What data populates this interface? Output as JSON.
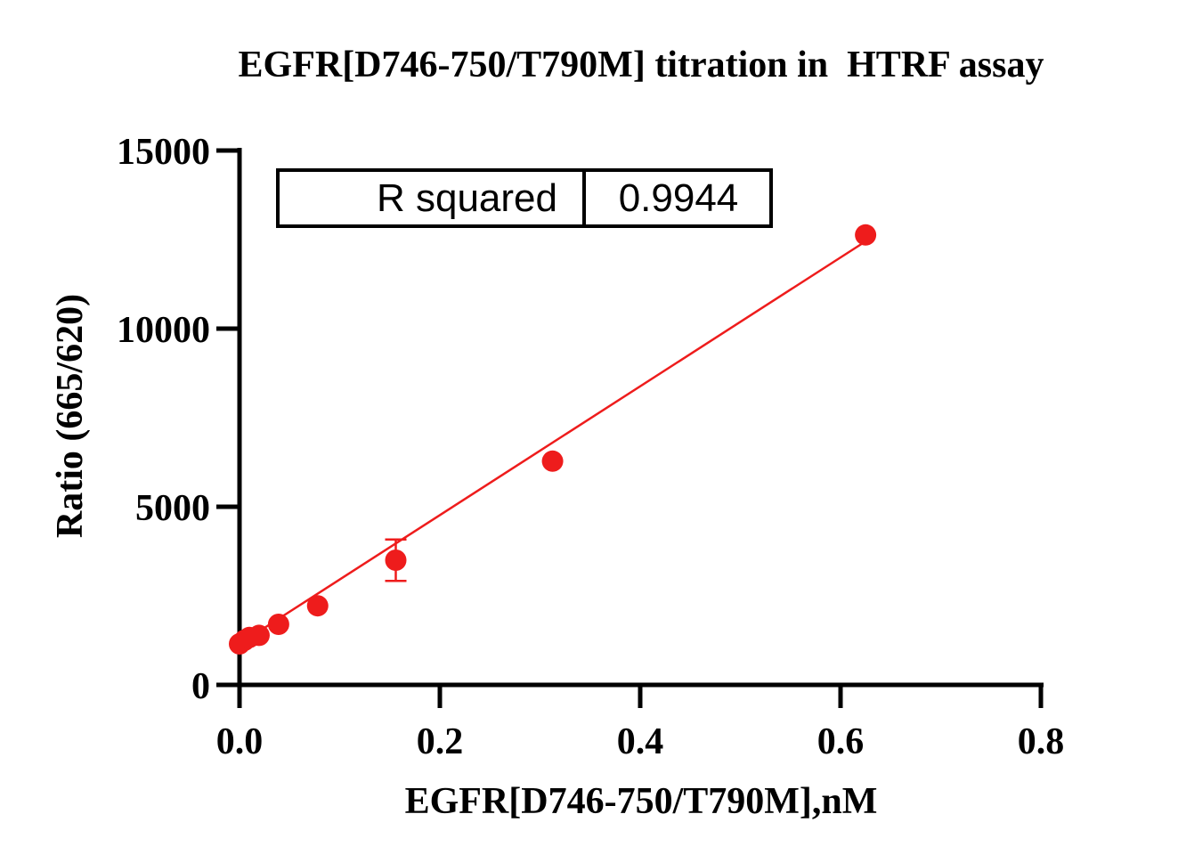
{
  "chart_data": {
    "type": "scatter",
    "title": "EGFR[D746-750/T790M] titration in  HTRF assay",
    "xlabel": "EGFR[D746-750/T790M],nM",
    "ylabel": "Ratio (665/620)",
    "xlim": [
      0,
      0.8
    ],
    "ylim": [
      0,
      15000
    ],
    "x_ticks": [
      0.0,
      0.2,
      0.4,
      0.6,
      0.8
    ],
    "x_tick_labels": [
      "0.0",
      "0.2",
      "0.4",
      "0.6",
      "0.8"
    ],
    "y_ticks": [
      0,
      5000,
      10000,
      15000
    ],
    "y_tick_labels": [
      "0",
      "5000",
      "10000",
      "15000"
    ],
    "grid": false,
    "colors": {
      "series": "#ee1c1c",
      "axis": "#000000"
    },
    "series": [
      {
        "x": [
          0.0,
          0.0049,
          0.0098,
          0.0195,
          0.039,
          0.078,
          0.156,
          0.3125,
          0.625
        ],
        "y": [
          1150,
          1250,
          1330,
          1390,
          1700,
          2220,
          3500,
          6280,
          12630
        ],
        "error": [
          0,
          0,
          0,
          0,
          0,
          0,
          580,
          0,
          0
        ]
      }
    ],
    "fit": {
      "type": "linear",
      "x": [
        0.0,
        0.625
      ],
      "y": [
        1150,
        12450
      ]
    },
    "annotation": {
      "label": "R squared",
      "value": "0.9944"
    }
  }
}
